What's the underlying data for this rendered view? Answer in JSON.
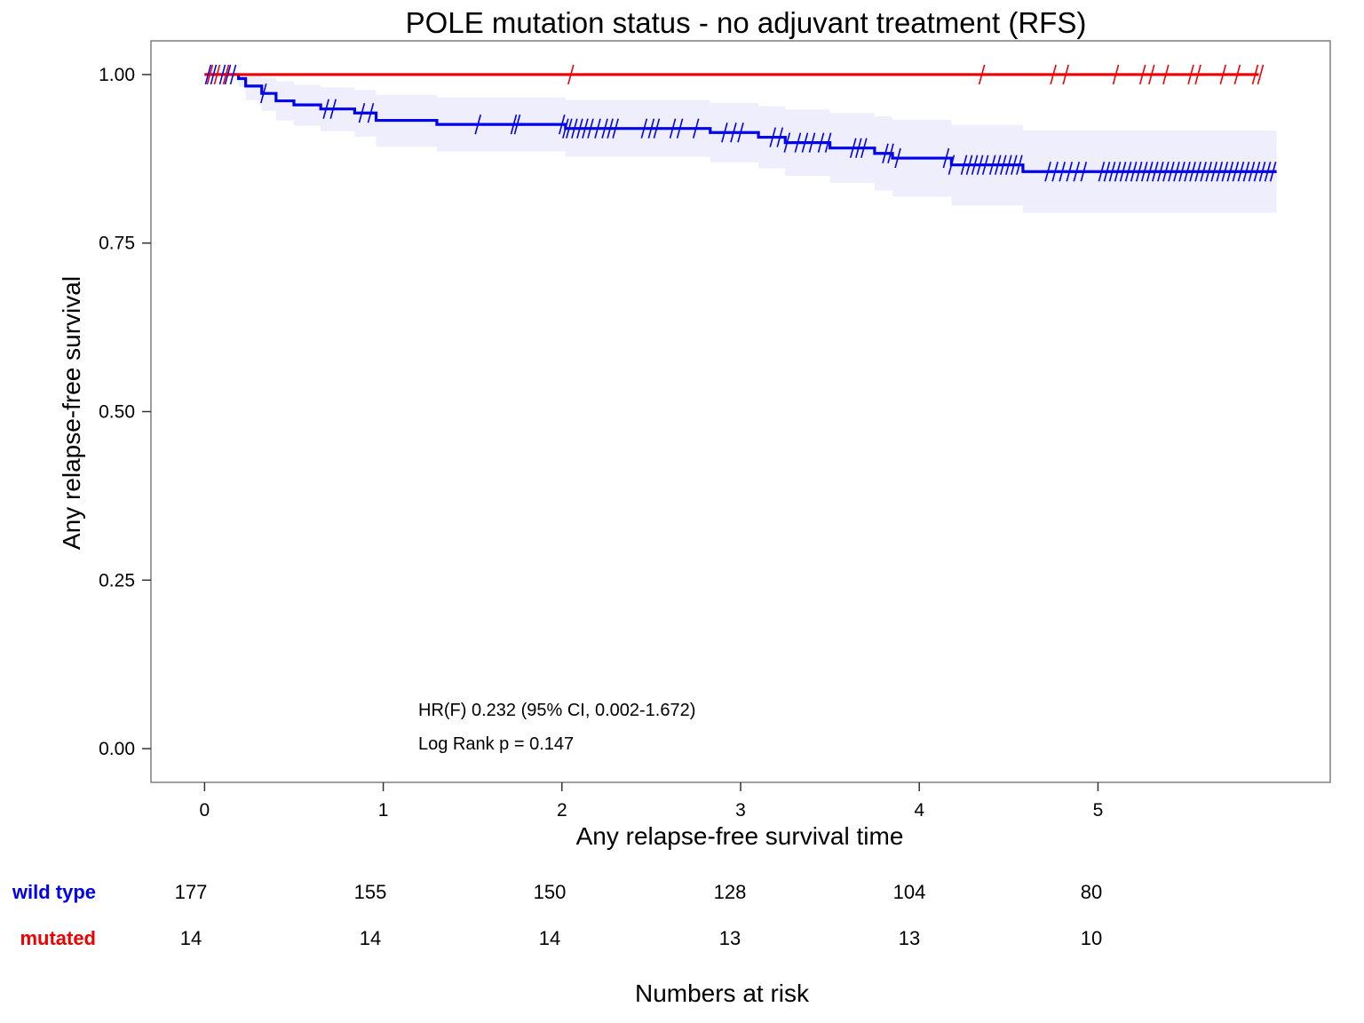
{
  "chart_data": {
    "type": "line",
    "subtype": "kaplan-meier",
    "title": "POLE mutation status - no adjuvant treatment (RFS)",
    "xlabel": "Any relapse-free survival time",
    "ylabel": "Any relapse-free survival",
    "xlim": [
      -0.3,
      6.3
    ],
    "ylim": [
      -0.05,
      1.05
    ],
    "x_ticks": [
      0,
      1,
      2,
      3,
      4,
      5
    ],
    "x_tick_labels": [
      "0",
      "1",
      "2",
      "3",
      "4",
      "5"
    ],
    "y_ticks": [
      0,
      0.25,
      0.5,
      0.75,
      1.0
    ],
    "y_tick_labels": [
      "0.00",
      "0.25",
      "0.50",
      "0.75",
      "1.00"
    ],
    "grid": false,
    "series": [
      {
        "name": "wild type",
        "color": "#0000ee",
        "steps": [
          [
            0,
            1.0
          ],
          [
            0.19,
            0.994
          ],
          [
            0.23,
            0.983
          ],
          [
            0.32,
            0.972
          ],
          [
            0.4,
            0.961
          ],
          [
            0.5,
            0.955
          ],
          [
            0.65,
            0.949
          ],
          [
            0.84,
            0.943
          ],
          [
            0.96,
            0.932
          ],
          [
            1.3,
            0.926
          ],
          [
            2.02,
            0.92
          ],
          [
            2.83,
            0.914
          ],
          [
            3.1,
            0.907
          ],
          [
            3.25,
            0.899
          ],
          [
            3.5,
            0.891
          ],
          [
            3.75,
            0.883
          ],
          [
            3.85,
            0.876
          ],
          [
            4.18,
            0.866
          ],
          [
            4.58,
            0.856
          ],
          [
            6.0,
            0.856
          ]
        ],
        "ci_upper": [
          [
            0,
            1.0
          ],
          [
            0.19,
            1.0
          ],
          [
            0.23,
            1.0
          ],
          [
            0.32,
            0.995
          ],
          [
            0.4,
            0.99
          ],
          [
            0.5,
            0.985
          ],
          [
            0.65,
            0.981
          ],
          [
            0.84,
            0.977
          ],
          [
            0.96,
            0.97
          ],
          [
            1.3,
            0.966
          ],
          [
            2.02,
            0.962
          ],
          [
            2.83,
            0.958
          ],
          [
            3.1,
            0.953
          ],
          [
            3.25,
            0.948
          ],
          [
            3.5,
            0.943
          ],
          [
            3.75,
            0.938
          ],
          [
            3.85,
            0.933
          ],
          [
            4.18,
            0.925
          ],
          [
            4.58,
            0.917
          ],
          [
            6.0,
            0.917
          ]
        ],
        "ci_lower": [
          [
            0,
            1.0
          ],
          [
            0.19,
            0.982
          ],
          [
            0.23,
            0.962
          ],
          [
            0.32,
            0.946
          ],
          [
            0.4,
            0.932
          ],
          [
            0.5,
            0.924
          ],
          [
            0.65,
            0.916
          ],
          [
            0.84,
            0.908
          ],
          [
            0.96,
            0.893
          ],
          [
            1.3,
            0.886
          ],
          [
            2.02,
            0.878
          ],
          [
            2.83,
            0.87
          ],
          [
            3.1,
            0.861
          ],
          [
            3.25,
            0.85
          ],
          [
            3.5,
            0.839
          ],
          [
            3.75,
            0.828
          ],
          [
            3.85,
            0.819
          ],
          [
            4.18,
            0.806
          ],
          [
            4.58,
            0.795
          ],
          [
            6.0,
            0.795
          ]
        ],
        "censor_x": [
          0.02,
          0.05,
          0.1,
          0.13,
          0.16,
          0.33,
          0.68,
          0.72,
          0.88,
          0.93,
          1.53,
          1.73,
          1.75,
          2.0,
          2.02,
          2.04,
          2.07,
          2.1,
          2.13,
          2.16,
          2.2,
          2.24,
          2.27,
          2.3,
          2.46,
          2.5,
          2.53,
          2.62,
          2.66,
          2.75,
          2.91,
          2.96,
          3.0,
          3.18,
          3.22,
          3.26,
          3.32,
          3.36,
          3.4,
          3.45,
          3.49,
          3.63,
          3.66,
          3.69,
          3.81,
          3.84,
          3.88,
          4.15,
          4.18,
          4.25,
          4.28,
          4.31,
          4.34,
          4.37,
          4.41,
          4.44,
          4.47,
          4.5,
          4.53,
          4.56,
          4.72,
          4.76,
          4.8,
          4.84,
          4.88,
          4.92,
          5.02,
          5.05,
          5.08,
          5.11,
          5.14,
          5.17,
          5.2,
          5.23,
          5.26,
          5.29,
          5.32,
          5.35,
          5.38,
          5.41,
          5.44,
          5.47,
          5.5,
          5.53,
          5.56,
          5.59,
          5.62,
          5.65,
          5.68,
          5.71,
          5.74,
          5.77,
          5.8,
          5.83,
          5.86,
          5.89,
          5.92,
          5.95,
          5.98
        ]
      },
      {
        "name": "mutated",
        "color": "#ee0000",
        "steps": [
          [
            0,
            1.0
          ],
          [
            5.9,
            1.0
          ]
        ],
        "censor_x": [
          0.03,
          0.07,
          0.12,
          2.05,
          4.35,
          4.75,
          4.82,
          5.1,
          5.25,
          5.3,
          5.38,
          5.52,
          5.56,
          5.7,
          5.78,
          5.88,
          5.91
        ]
      }
    ],
    "annotations": [
      "HR(F) 0.232 (95% CI, 0.002-1.672)",
      "Log Rank p = 0.147"
    ],
    "risk_table": {
      "title": "Numbers at risk",
      "rows": [
        {
          "label": "wild type",
          "color": "#0000ee",
          "values": [
            "177",
            "155",
            "150",
            "128",
            "104",
            "80"
          ]
        },
        {
          "label": "mutated",
          "color": "#ee0000",
          "values": [
            "14",
            "14",
            "14",
            "13",
            "13",
            "10"
          ]
        }
      ]
    },
    "ci_fill_color": "#eeeefc"
  }
}
